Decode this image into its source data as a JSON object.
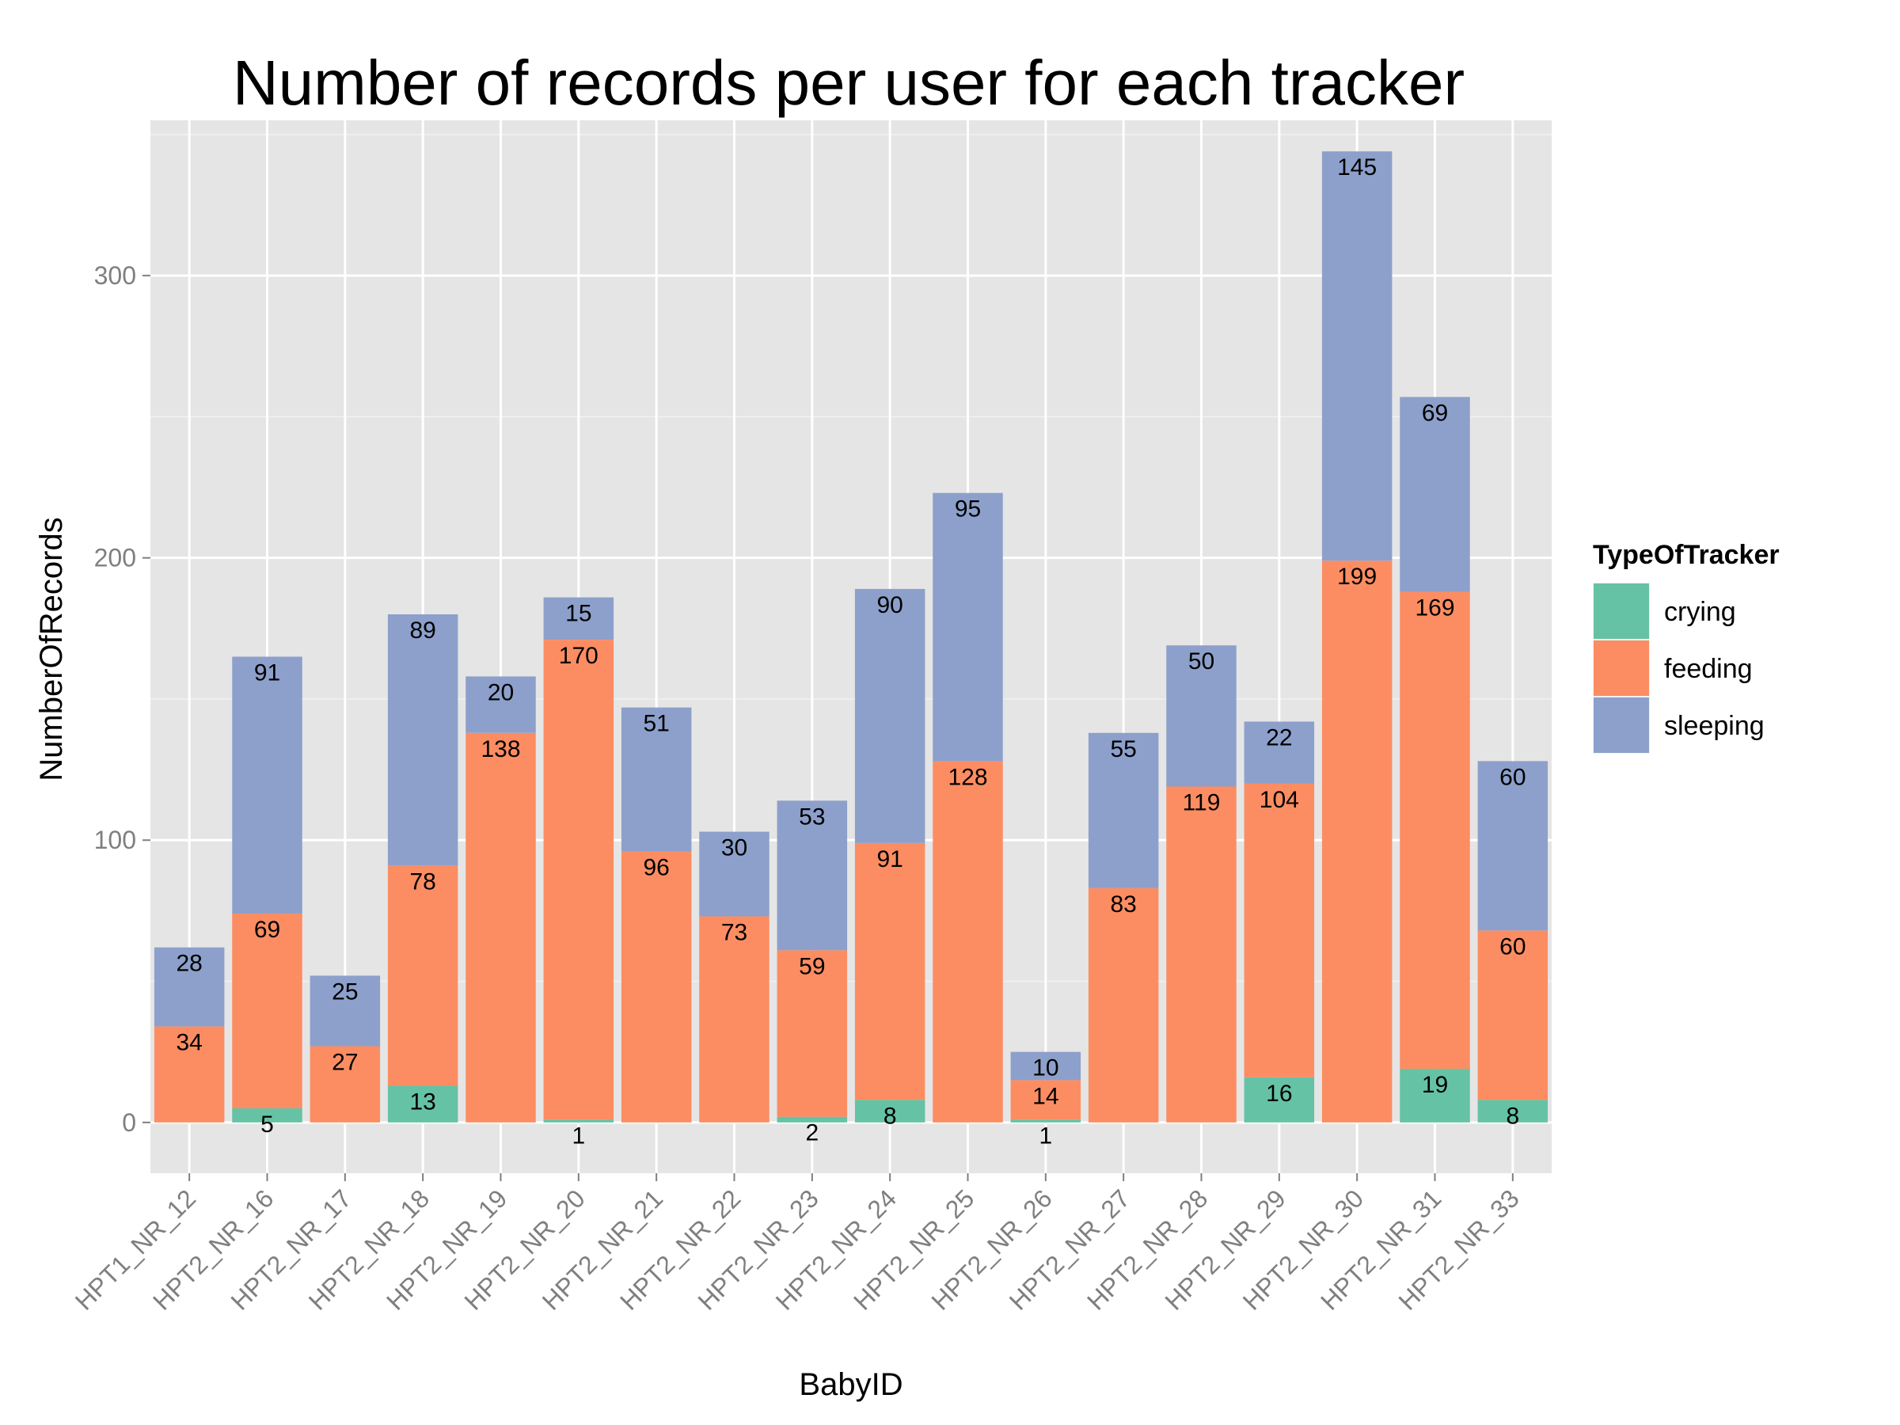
{
  "chart_data": {
    "type": "bar",
    "stacked": true,
    "title": "Number of records per user for each tracker",
    "xlabel": "BabyID",
    "ylabel": "NumberOfRecords",
    "ylim": [
      -18,
      355
    ],
    "yticks": [
      0,
      100,
      200,
      300
    ],
    "grid": true,
    "legend_title": "TypeOfTracker",
    "legend_position": "right",
    "categories": [
      "HPT1_NR_12",
      "HPT2_NR_16",
      "HPT2_NR_17",
      "HPT2_NR_18",
      "HPT2_NR_19",
      "HPT2_NR_20",
      "HPT2_NR_21",
      "HPT2_NR_22",
      "HPT2_NR_23",
      "HPT2_NR_24",
      "HPT2_NR_25",
      "HPT2_NR_26",
      "HPT2_NR_27",
      "HPT2_NR_28",
      "HPT2_NR_29",
      "HPT2_NR_30",
      "HPT2_NR_31",
      "HPT2_NR_33"
    ],
    "series": [
      {
        "name": "crying",
        "color": "#66c2a5",
        "values": [
          0,
          5,
          0,
          13,
          0,
          1,
          0,
          0,
          2,
          8,
          0,
          1,
          0,
          0,
          16,
          0,
          19,
          8
        ]
      },
      {
        "name": "feeding",
        "color": "#fc8d62",
        "values": [
          34,
          69,
          27,
          78,
          138,
          170,
          96,
          73,
          59,
          91,
          128,
          14,
          83,
          119,
          104,
          199,
          169,
          60
        ]
      },
      {
        "name": "sleeping",
        "color": "#8da0cb",
        "values": [
          28,
          91,
          25,
          89,
          20,
          15,
          51,
          30,
          53,
          90,
          95,
          10,
          55,
          50,
          22,
          145,
          69,
          60
        ]
      }
    ]
  }
}
